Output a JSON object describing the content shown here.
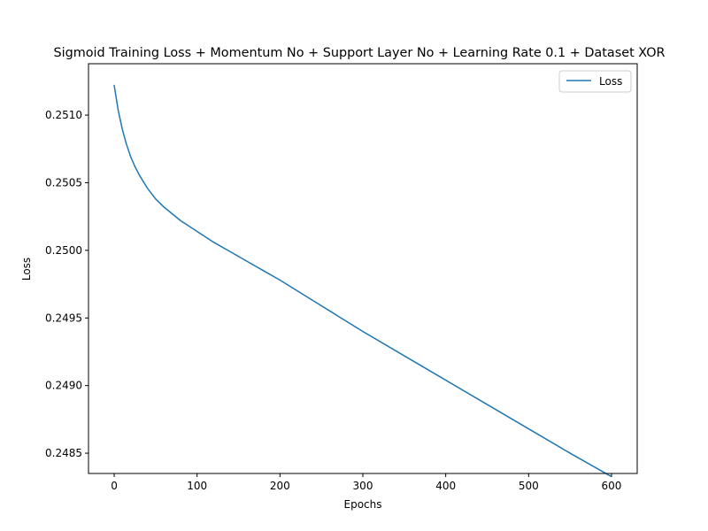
{
  "chart_data": {
    "type": "line",
    "title": "Sigmoid Training Loss + Momentum No + Support Layer No + Learning Rate 0.1 + Dataset XOR",
    "xlabel": "Epochs",
    "ylabel": "Loss",
    "xlim": [
      -31,
      631
    ],
    "ylim": [
      0.24835,
      0.25138
    ],
    "xticks": [
      0,
      100,
      200,
      300,
      400,
      500,
      600
    ],
    "xtick_labels": [
      "0",
      "100",
      "200",
      "300",
      "400",
      "500",
      "600"
    ],
    "yticks": [
      0.2485,
      0.249,
      0.2495,
      0.25,
      0.2505,
      0.251
    ],
    "ytick_labels": [
      "0.2485",
      "0.2490",
      "0.2495",
      "0.2500",
      "0.2505",
      "0.2510"
    ],
    "grid": false,
    "legend_position": "top-right",
    "series": [
      {
        "name": "Loss",
        "color": "#1f77b4",
        "x": [
          0,
          5,
          10,
          15,
          20,
          25,
          30,
          40,
          50,
          60,
          70,
          80,
          90,
          100,
          120,
          140,
          160,
          180,
          200,
          250,
          300,
          350,
          400,
          450,
          500,
          550,
          599
        ],
        "y": [
          0.25122,
          0.25103,
          0.25089,
          0.25078,
          0.25069,
          0.25062,
          0.25056,
          0.25046,
          0.25038,
          0.25032,
          0.25027,
          0.25022,
          0.25018,
          0.25014,
          0.25006,
          0.24999,
          0.24992,
          0.24985,
          0.24978,
          0.24959,
          0.2494,
          0.24922,
          0.24904,
          0.24886,
          0.24868,
          0.2485,
          0.24833
        ]
      }
    ]
  }
}
